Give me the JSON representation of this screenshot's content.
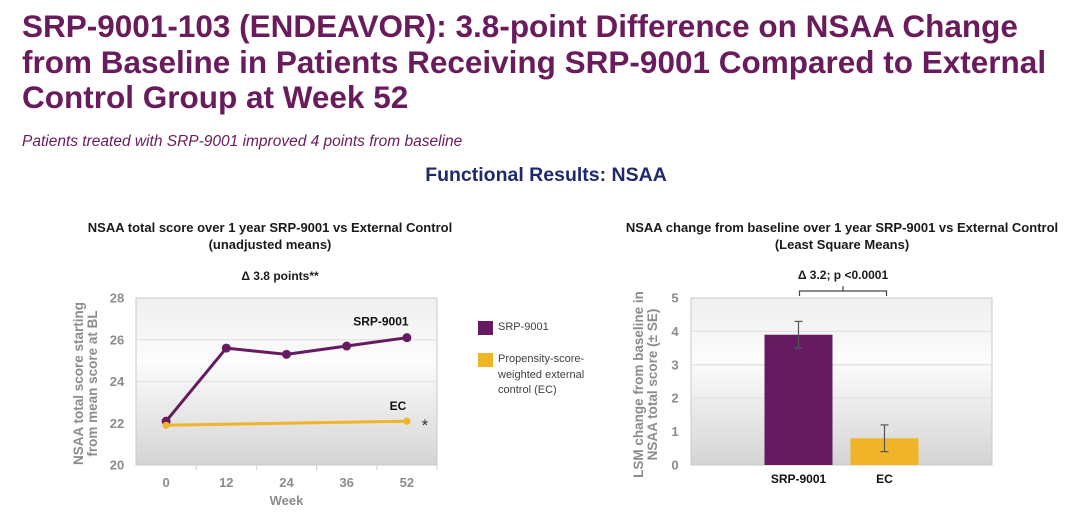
{
  "slide": {
    "title_lines": [
      "SRP-9001-103 (ENDEAVOR): 3.8-point Difference on NSAA Change",
      "from Baseline in Patients Receiving SRP-9001 Compared to External",
      "Control Group at Week 52"
    ],
    "subtitle": "Patients treated with SRP-9001 improved 4 points from baseline",
    "section_heading": "Functional Results: NSAA"
  },
  "colors": {
    "srp": "#661a5f",
    "ec": "#f0b429",
    "title": "#6a1b5c",
    "heading": "#1f2a6e"
  },
  "legend": [
    {
      "key": "srp",
      "label_lines": [
        "SRP-9001"
      ]
    },
    {
      "key": "ec",
      "label_lines": [
        "Propensity-score-",
        "weighted external",
        "control (EC)"
      ]
    }
  ],
  "chart_data": [
    {
      "type": "line",
      "title": "NSAA total score over 1 year SRP-9001 vs External Control",
      "subtitle": "(unadjusted means)",
      "annotation": "Δ 3.8 points**",
      "xlabel": "Week",
      "ylabel": "NSAA total score starting from mean score at BL",
      "ylabel_lines": [
        "NSAA total score starting",
        "from mean score at BL"
      ],
      "categories": [
        "0",
        "12",
        "24",
        "36",
        "52"
      ],
      "ylim": [
        20,
        28
      ],
      "yticks": [
        20,
        22,
        24,
        26,
        28
      ],
      "grid": true,
      "legend": "right",
      "series": [
        {
          "key": "srp",
          "name": "SRP-9001",
          "label": "SRP-9001",
          "values": [
            22.1,
            25.6,
            25.3,
            25.7,
            26.1
          ]
        },
        {
          "key": "ec",
          "name": "Propensity-score-weighted external control (EC)",
          "label": "EC",
          "note": "*",
          "values": [
            21.9,
            null,
            null,
            null,
            22.1
          ]
        }
      ]
    },
    {
      "type": "bar",
      "title": "NSAA change from baseline over 1 year SRP-9001 vs External Control",
      "subtitle": "(Least Square Means)",
      "annotation": "Δ 3.2; p <0.0001",
      "xlabel": "",
      "ylabel": "LSM change from baseline in NSAA total score (± SE)",
      "ylabel_lines": [
        "LSM change from baseline in",
        "NSAA total score (± SE)"
      ],
      "categories": [
        "SRP-9001",
        "EC"
      ],
      "color_keys": [
        "srp",
        "ec"
      ],
      "values": [
        3.9,
        0.8
      ],
      "errors": [
        0.4,
        0.4
      ],
      "ylim": [
        0,
        5
      ],
      "yticks": [
        0,
        1,
        2,
        3,
        4,
        5
      ],
      "grid": true
    }
  ]
}
